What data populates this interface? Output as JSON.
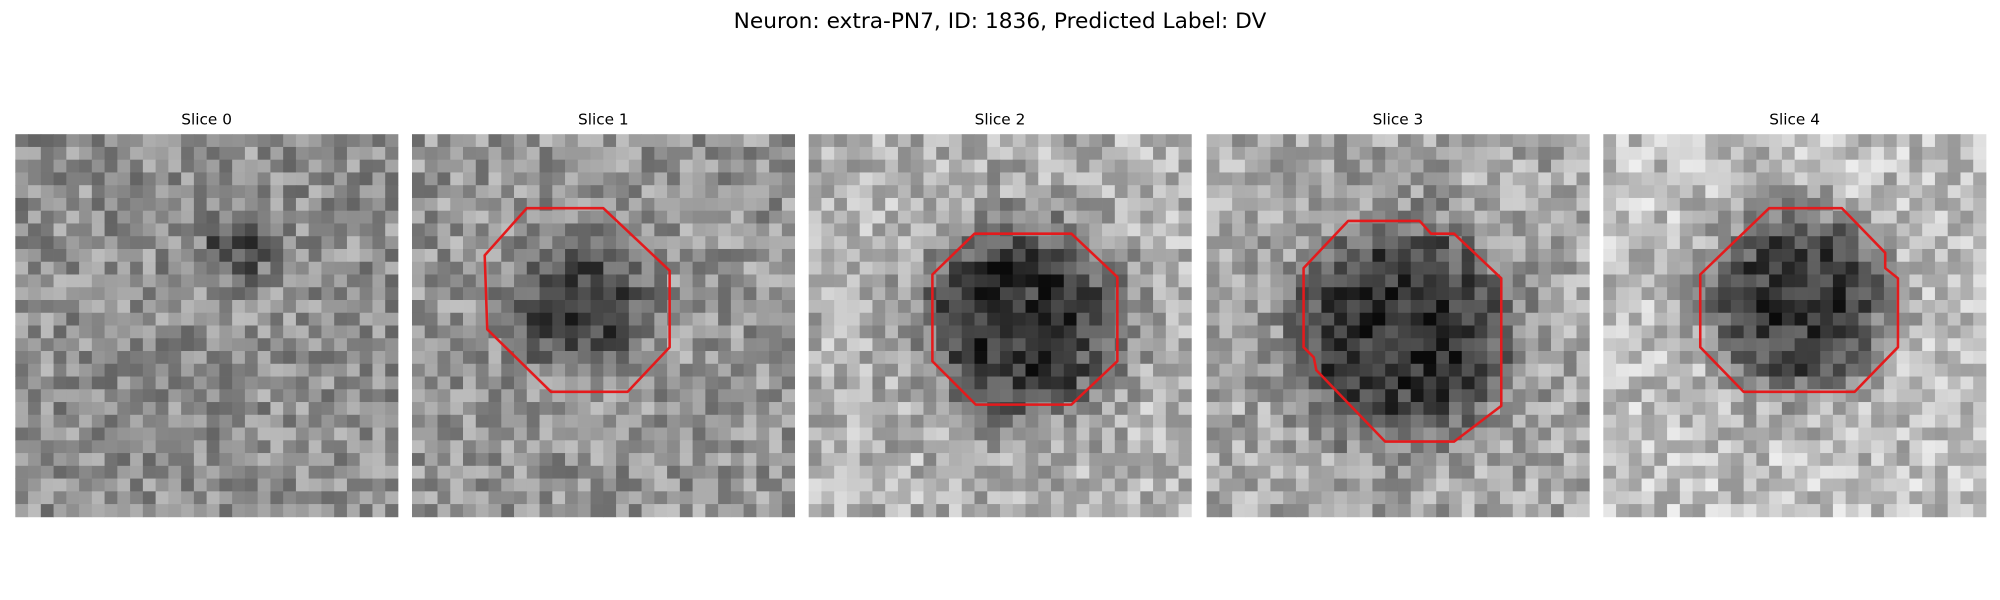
{
  "title": "Neuron: extra-PN7, ID: 1836, Predicted Label: DV",
  "panels": [
    {
      "title": "Slice 0"
    },
    {
      "title": "Slice 1"
    },
    {
      "title": "Slice 2"
    },
    {
      "title": "Slice 3"
    },
    {
      "title": "Slice 4"
    }
  ]
}
